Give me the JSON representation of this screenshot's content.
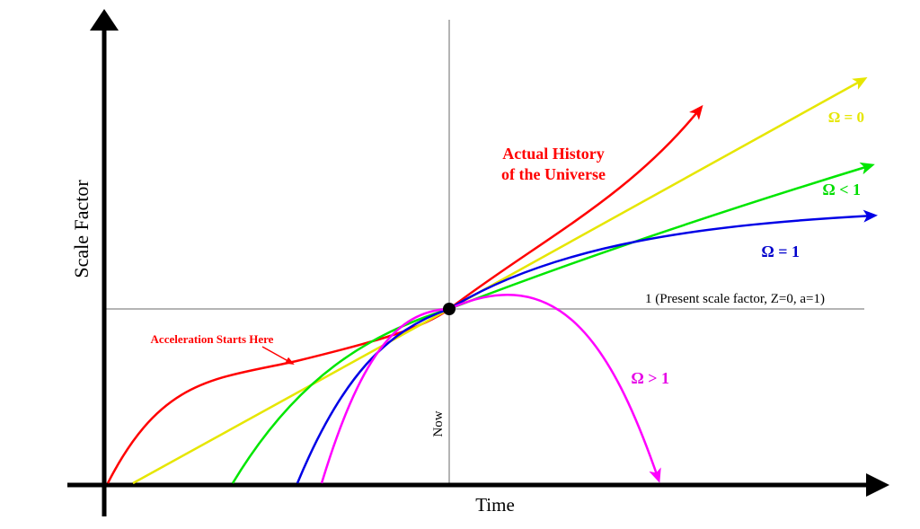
{
  "axes": {
    "y_label": "Scale Factor",
    "x_label": "Time"
  },
  "reference": {
    "present_label": "1 (Present scale factor, Z=0, a=1)",
    "now_label": "Now"
  },
  "annotations": {
    "actual_history_line1": "Actual History",
    "actual_history_line2": "of the Universe",
    "acceleration": "Acceleration Starts Here"
  },
  "curves": {
    "omega_zero": "Ω = 0",
    "omega_lt_one": "Ω < 1",
    "omega_one": "Ω = 1",
    "omega_gt_one": "Ω > 1"
  },
  "colors": {
    "axis": "#000000",
    "reference": "#b4b4b4",
    "actual": "#ff0000",
    "omega_zero": "#e6e600",
    "omega_lt_one": "#00e600",
    "omega_one": "#0000e6",
    "omega_gt_one": "#ff00ff",
    "actual_label": "#ff0000",
    "omega_zero_label": "#e6e600",
    "omega_lt_one_label": "#00dd00",
    "omega_one_label": "#0000cc",
    "omega_gt_one_label": "#e600e6"
  }
}
